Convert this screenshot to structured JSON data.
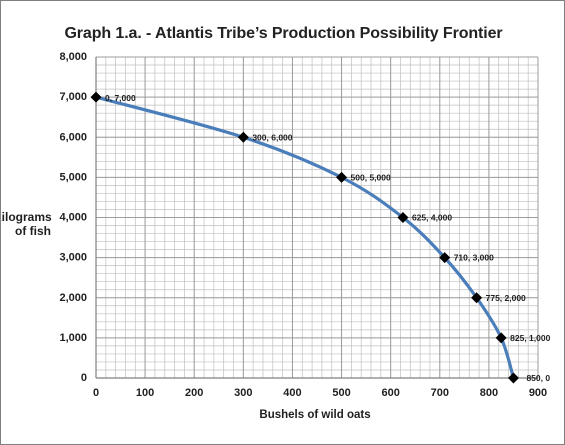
{
  "chart_data": {
    "type": "line",
    "title": "Graph 1.a.  - Atlantis Tribe’s Production Possibility Frontier",
    "xlabel": "Bushels of wild oats",
    "ylabel": "Kilograms\nof fish",
    "xlim": [
      0,
      900
    ],
    "ylim": [
      0,
      8000
    ],
    "x_ticks": [
      "0",
      "100",
      "200",
      "300",
      "400",
      "500",
      "600",
      "700",
      "800",
      "900"
    ],
    "y_ticks": [
      "0",
      "1,000",
      "2,000",
      "3,000",
      "4,000",
      "5,000",
      "6,000",
      "7,000",
      "8,000"
    ],
    "grid": true,
    "legend": "none",
    "points": [
      {
        "x": 0,
        "y": 7000,
        "label": "0, 7,000"
      },
      {
        "x": 300,
        "y": 6000,
        "label": "300, 6,000"
      },
      {
        "x": 500,
        "y": 5000,
        "label": "500, 5,000"
      },
      {
        "x": 625,
        "y": 4000,
        "label": "625, 4,000"
      },
      {
        "x": 710,
        "y": 3000,
        "label": "710, 3,000"
      },
      {
        "x": 775,
        "y": 2000,
        "label": "775, 2,000"
      },
      {
        "x": 825,
        "y": 1000,
        "label": "825, 1,000"
      },
      {
        "x": 850,
        "y": 0,
        "label": "850, 0"
      }
    ],
    "colors": {
      "line": "#4a7ebb",
      "marker": "#000000",
      "grid": "#bfbfbf",
      "axis": "#7f7f7f"
    }
  }
}
